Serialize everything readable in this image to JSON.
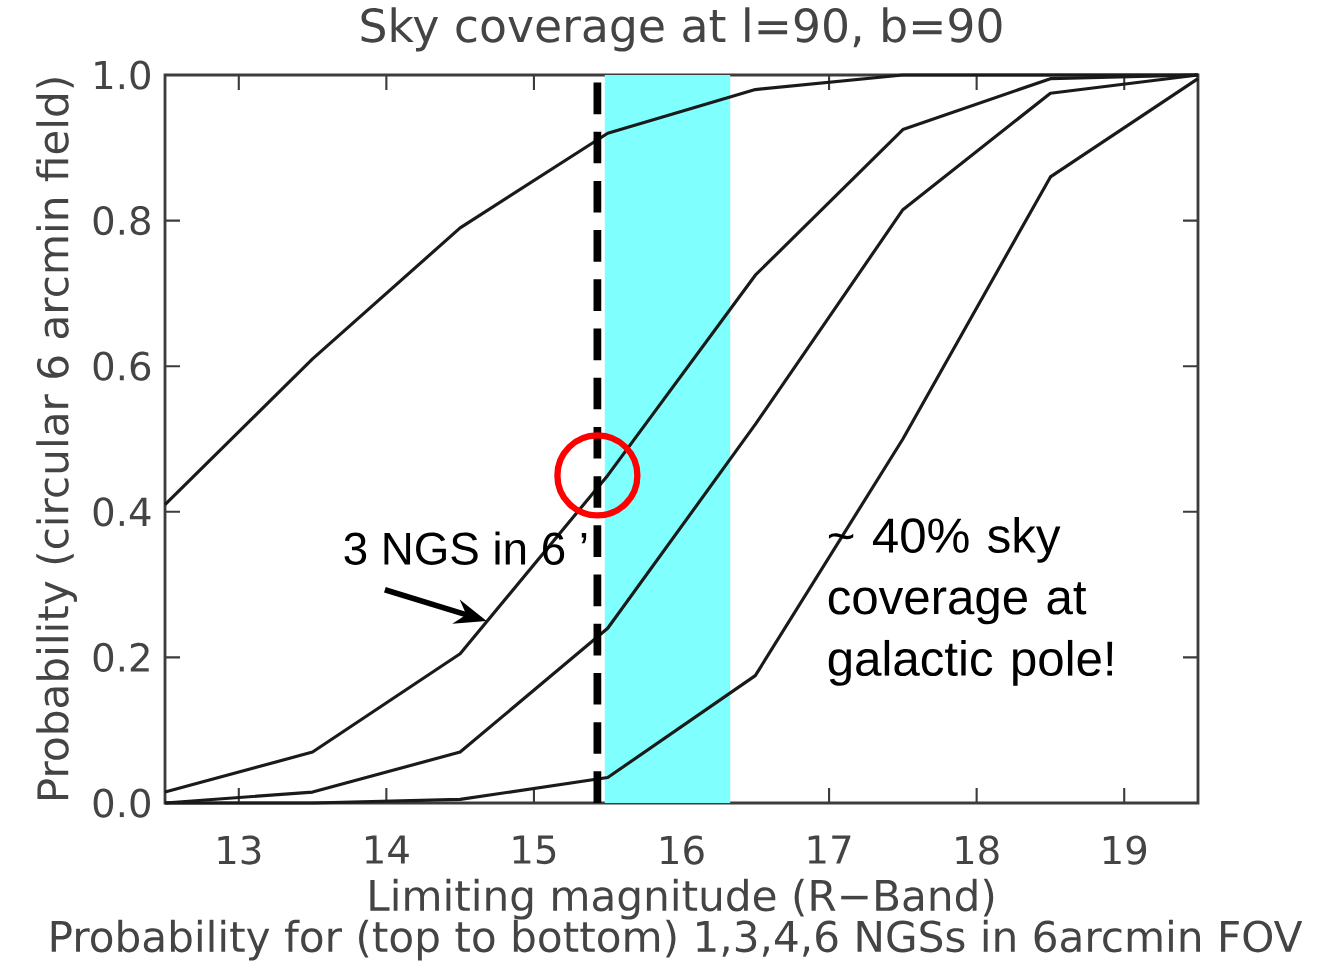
{
  "chart_data": {
    "type": "line",
    "title": "Sky coverage at l=90, b=90",
    "xlabel": "Limiting magnitude (R−Band)",
    "ylabel": "Probability (circular 6 arcmin field)",
    "x": [
      12.5,
      13.5,
      14.5,
      15.5,
      16.5,
      17.5,
      18.5,
      19.5
    ],
    "series": [
      {
        "color": "#1a1a1a",
        "values": [
          0.41,
          0.61,
          0.79,
          0.92,
          0.98,
          1.0,
          1.0,
          1.0
        ]
      },
      {
        "color": "#1a1a1a",
        "values": [
          0.015,
          0.07,
          0.205,
          0.45,
          0.725,
          0.925,
          0.995,
          1.0
        ]
      },
      {
        "color": "#1a1a1a",
        "values": [
          0.0,
          0.015,
          0.07,
          0.24,
          0.52,
          0.815,
          0.975,
          1.0
        ]
      },
      {
        "color": "#1a1a1a",
        "values": [
          0.0,
          0.0,
          0.005,
          0.035,
          0.175,
          0.5,
          0.86,
          0.995
        ]
      }
    ],
    "xlim": [
      12.5,
      19.5
    ],
    "ylim": [
      0,
      1
    ],
    "xticks": [
      13,
      14,
      15,
      16,
      17,
      18,
      19
    ],
    "yticks": [
      {
        "value": 0,
        "label": "0.0"
      },
      {
        "value": 0.2,
        "label": "0.2"
      },
      {
        "value": 0.4,
        "label": "0.4"
      },
      {
        "value": 0.6,
        "label": "0.6"
      },
      {
        "value": 0.8,
        "label": "0.8"
      },
      {
        "value": 1,
        "label": "1.0"
      }
    ],
    "ref_lines": [
      {
        "axis": "x",
        "value": 15.43,
        "color": "#000000",
        "line_style": "dashed"
      }
    ],
    "bands": [
      {
        "axis": "x",
        "from": 15.48,
        "to": 16.33,
        "color": "#80ffff"
      }
    ],
    "annotations": [
      "3 NGS in 6 ’",
      "~ 40%  sky coverage at galactic pole!",
      "Probability for (top to bottom) 1,3,4,6 NGSs in 6arcmin FOV"
    ]
  }
}
